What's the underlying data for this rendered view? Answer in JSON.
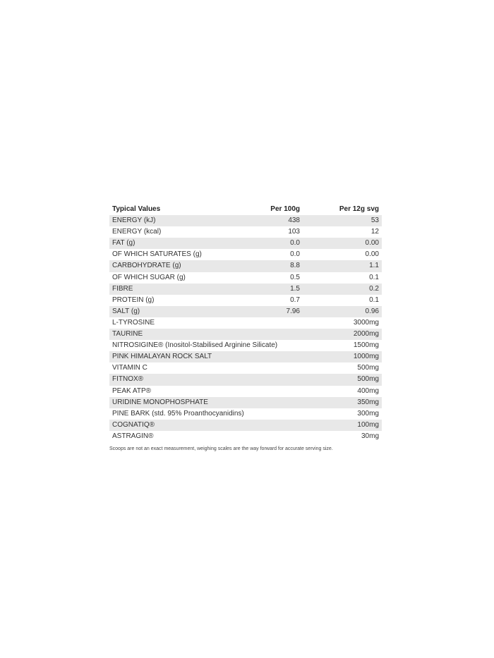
{
  "table": {
    "headers": [
      "Typical Values",
      "Per 100g",
      "Per 12g svg"
    ],
    "rows": [
      [
        "ENERGY (kJ)",
        "438",
        "53"
      ],
      [
        "ENERGY (kcal)",
        "103",
        "12"
      ],
      [
        "FAT (g)",
        "0.0",
        "0.00"
      ],
      [
        "OF WHICH SATURATES (g)",
        "0.0",
        "0.00"
      ],
      [
        "CARBOHYDRATE (g)",
        "8.8",
        "1.1"
      ],
      [
        "OF WHICH SUGAR (g)",
        "0.5",
        "0.1"
      ],
      [
        "FIBRE",
        "1.5",
        "0.2"
      ],
      [
        "PROTEIN (g)",
        "0.7",
        "0.1"
      ],
      [
        "SALT (g)",
        "7.96",
        "0.96"
      ],
      [
        "L-TYROSINE",
        "",
        "3000mg"
      ],
      [
        "TAURINE",
        "",
        "2000mg"
      ],
      [
        "NITROSIGINE® (Inositol-Stabilised Arginine Silicate)",
        "",
        "1500mg"
      ],
      [
        "PINK HIMALAYAN ROCK SALT",
        "",
        "1000mg"
      ],
      [
        "VITAMIN C",
        "",
        "500mg"
      ],
      [
        "FITNOX®",
        "",
        "500mg"
      ],
      [
        "PEAK ATP®",
        "",
        "400mg"
      ],
      [
        "URIDINE MONOPHOSPHATE",
        "",
        "350mg"
      ],
      [
        "PINE BARK (std. 95% Proanthocyanidins)",
        "",
        "300mg"
      ],
      [
        "COGNATIQ®",
        "",
        "100mg"
      ],
      [
        "ASTRAGIN®",
        "",
        "30mg"
      ]
    ]
  },
  "footnote": "Scoops are not an exact measurement, weighing scales are the way forward for accurate serving size.",
  "colors": {
    "stripe": "#e8e8e8",
    "text": "#333333"
  }
}
